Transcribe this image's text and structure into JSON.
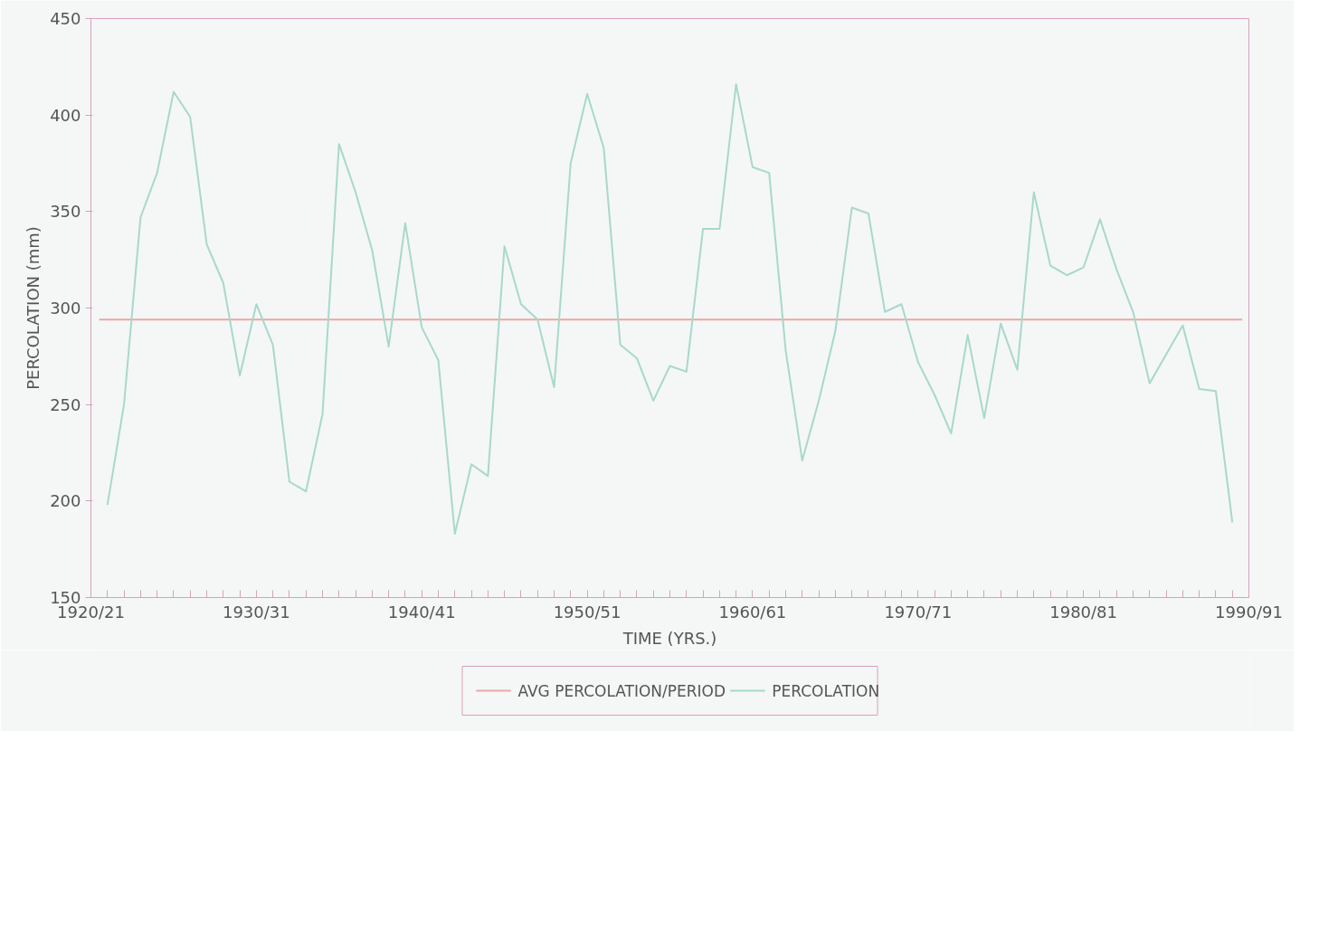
{
  "chart_data": {
    "type": "line",
    "xlabel": "TIME (YRS.)",
    "ylabel": "PERCOLATION (mm)",
    "categories": [
      "1920/21",
      null,
      null,
      null,
      null,
      null,
      null,
      null,
      null,
      null,
      "1930/31",
      null,
      null,
      null,
      null,
      null,
      null,
      null,
      null,
      null,
      "1940/41",
      null,
      null,
      null,
      null,
      null,
      null,
      null,
      null,
      null,
      "1950/51",
      null,
      null,
      null,
      null,
      null,
      null,
      null,
      null,
      null,
      "1960/61",
      null,
      null,
      null,
      null,
      null,
      null,
      null,
      null,
      null,
      "1970/71",
      null,
      null,
      null,
      null,
      null,
      null,
      null,
      null,
      null,
      "1980/81",
      null,
      null,
      null,
      null,
      null,
      null,
      null,
      null,
      null,
      "1990/91"
    ],
    "ylim": [
      150,
      450
    ],
    "yticks": [
      150,
      200,
      250,
      300,
      350,
      400,
      450
    ],
    "grid": false,
    "legend": "bottom",
    "ref_lines": [
      {
        "axis": "y",
        "value": 294,
        "label": "AVG PERCOLATION/PERIOD",
        "color": "#e8a8a8"
      }
    ],
    "series": [
      {
        "name": "PERCOLATION",
        "color": "#a8d8cc",
        "values": [
          null,
          198,
          250,
          347,
          370,
          412,
          399,
          333,
          313,
          265,
          302,
          281,
          210,
          205,
          245,
          385,
          360,
          330,
          280,
          344,
          290,
          273,
          183,
          219,
          213,
          332,
          302,
          294,
          259,
          375,
          411,
          383,
          281,
          274,
          252,
          270,
          267,
          341,
          341,
          416,
          373,
          370,
          278,
          221,
          252,
          288,
          352,
          349,
          298,
          302,
          272,
          255,
          235,
          286,
          243,
          292,
          268,
          360,
          322,
          317,
          321,
          346,
          320,
          298,
          261,
          276,
          291,
          258,
          257,
          189,
          null
        ]
      }
    ]
  }
}
